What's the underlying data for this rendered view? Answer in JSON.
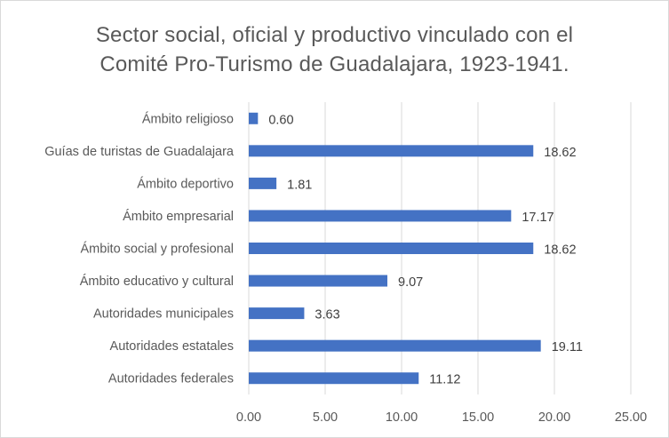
{
  "chart_data": {
    "type": "bar",
    "orientation": "horizontal",
    "title_line1": "Sector social, oficial y productivo vinculado con el",
    "title_line2": "Comité Pro-Turismo de Guadalajara, 1923-1941.",
    "categories": [
      "Ámbito religioso",
      "Guías de turistas de Guadalajara",
      "Ámbito deportivo",
      "Ámbito empresarial",
      "Ámbito social y profesional",
      "Ámbito educativo y cultural",
      "Autoridades municipales",
      "Autoridades estatales",
      "Autoridades federales"
    ],
    "values": [
      0.6,
      18.62,
      1.81,
      17.17,
      18.62,
      9.07,
      3.63,
      19.11,
      11.12
    ],
    "value_labels": [
      "0.60",
      "18.62",
      "1.81",
      "17.17",
      "18.62",
      "9.07",
      "3.63",
      "19.11",
      "11.12"
    ],
    "xlim": [
      0,
      25
    ],
    "xticks": [
      "0.00",
      "5.00",
      "10.00",
      "15.00",
      "20.00",
      "25.00"
    ],
    "xlabel": "",
    "ylabel": "",
    "grid": "vertical",
    "legend": "none",
    "bar_color": "#4472c4",
    "grid_color": "#d9d9d9"
  }
}
